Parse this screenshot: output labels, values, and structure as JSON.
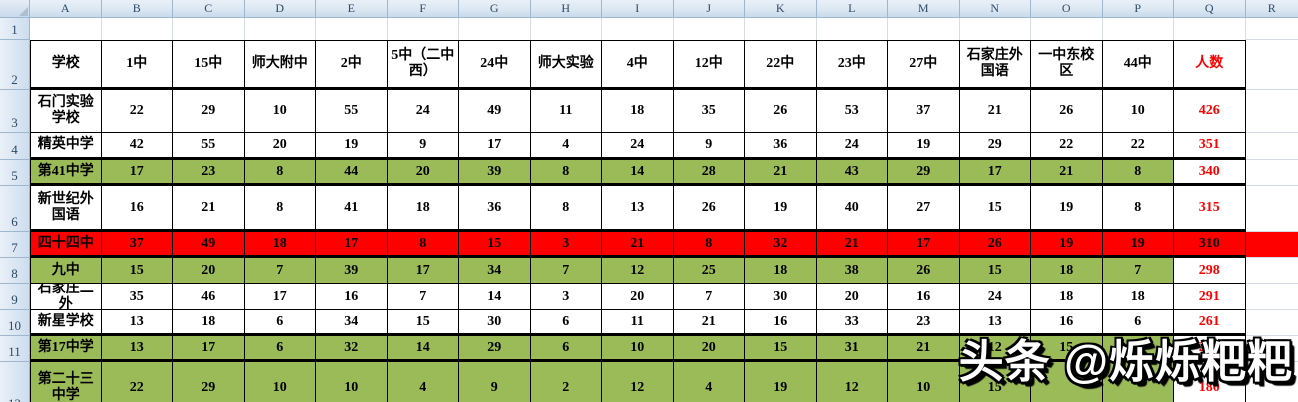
{
  "sheet": {
    "column_letters": [
      "A",
      "B",
      "C",
      "D",
      "E",
      "F",
      "G",
      "H",
      "I",
      "J",
      "K",
      "L",
      "M",
      "N",
      "O",
      "P",
      "Q",
      "R"
    ],
    "row_numbers": [
      "1",
      "2",
      "3",
      "4",
      "5",
      "6",
      "7",
      "8",
      "9",
      "10",
      "11",
      "12"
    ],
    "header_row": {
      "school_label": "学校",
      "columns": [
        "1中",
        "15中",
        "师大附中",
        "2中",
        "5中（二中西）",
        "24中",
        "师大实验",
        "4中",
        "12中",
        "22中",
        "23中",
        "27中",
        "石家庄外国语",
        "一中东校区",
        "44中"
      ],
      "total_label": "人数"
    },
    "rows": [
      {
        "name": "石门实验学校",
        "fill": "white",
        "values": [
          22,
          29,
          10,
          55,
          24,
          49,
          11,
          18,
          35,
          26,
          53,
          37,
          21,
          26,
          10
        ],
        "total": "426"
      },
      {
        "name": "精英中学",
        "fill": "white",
        "values": [
          42,
          55,
          20,
          19,
          9,
          17,
          4,
          24,
          9,
          36,
          24,
          19,
          29,
          22,
          22
        ],
        "total": "351"
      },
      {
        "name": "第41中学",
        "fill": "green",
        "values": [
          17,
          23,
          8,
          44,
          20,
          39,
          8,
          14,
          28,
          21,
          43,
          29,
          17,
          21,
          8
        ],
        "total": "340"
      },
      {
        "name": "新世纪外国语",
        "fill": "white",
        "values": [
          16,
          21,
          8,
          41,
          18,
          36,
          8,
          13,
          26,
          19,
          40,
          27,
          15,
          19,
          8
        ],
        "total": "315"
      },
      {
        "name": "四十四中",
        "fill": "red",
        "values": [
          37,
          49,
          18,
          17,
          8,
          15,
          3,
          21,
          8,
          32,
          21,
          17,
          26,
          19,
          19
        ],
        "total": "310"
      },
      {
        "name": "九中",
        "fill": "green",
        "values": [
          15,
          20,
          7,
          39,
          17,
          34,
          7,
          12,
          25,
          18,
          38,
          26,
          15,
          18,
          7
        ],
        "total": "298"
      },
      {
        "name": "石家庄二外",
        "fill": "white",
        "values": [
          35,
          46,
          17,
          16,
          7,
          14,
          3,
          20,
          7,
          30,
          20,
          16,
          24,
          18,
          18
        ],
        "total": "291"
      },
      {
        "name": "新星学校",
        "fill": "white",
        "values": [
          13,
          18,
          6,
          34,
          15,
          30,
          6,
          11,
          21,
          16,
          33,
          23,
          13,
          16,
          6
        ],
        "total": "261"
      },
      {
        "name": "第17中学",
        "fill": "green",
        "values": [
          13,
          17,
          6,
          32,
          14,
          29,
          6,
          10,
          20,
          15,
          31,
          21,
          12,
          15,
          6
        ],
        "total": "247"
      },
      {
        "name": "第二十三中学",
        "fill": "green",
        "values": [
          22,
          29,
          10,
          10,
          4,
          9,
          2,
          12,
          4,
          19,
          12,
          10,
          15,
          null,
          null
        ],
        "total": "180"
      }
    ]
  },
  "watermark": {
    "text": "头条 @烁烁粑粑"
  },
  "colors": {
    "green_fill": "#9BBB59",
    "red_fill": "#FF0000",
    "total_text": "#FF0000",
    "table_border": "#000000",
    "gridline": "#D5DCE8",
    "header_strip_bg": "#DCE7F2",
    "header_strip_border": "#9EB6CE"
  }
}
